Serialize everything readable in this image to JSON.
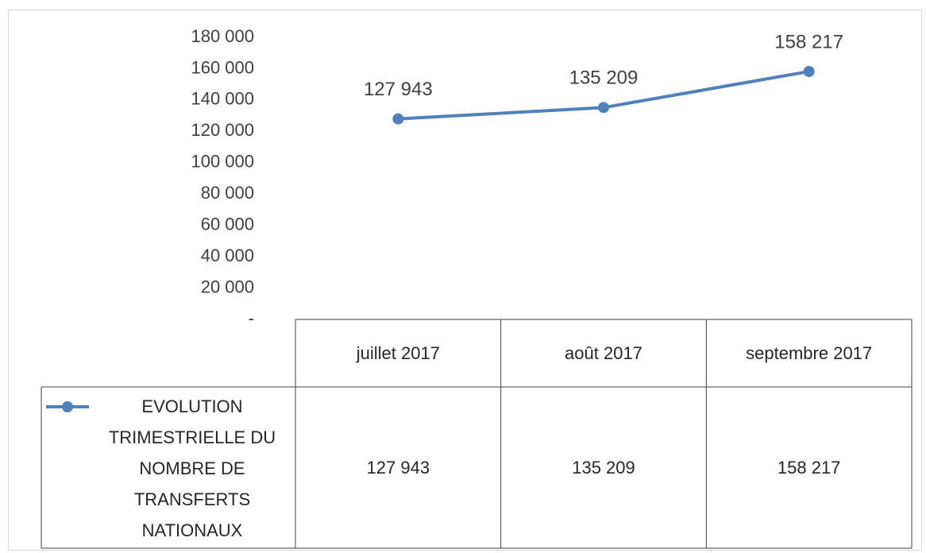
{
  "chart_data": {
    "type": "line",
    "categories": [
      "juillet 2017",
      "août 2017",
      "septembre 2017"
    ],
    "series": [
      {
        "name": "EVOLUTION TRIMESTRIELLE DU NOMBRE DE TRANSFERTS NATIONAUX",
        "color": "#4f81bd",
        "values": [
          127943,
          135209,
          158217
        ],
        "value_labels": [
          "127 943",
          "135 209",
          "158 217"
        ]
      }
    ],
    "ylim": [
      0,
      180000
    ],
    "yticks": [
      {
        "value": 0,
        "label": "-"
      },
      {
        "value": 20000,
        "label": "20 000"
      },
      {
        "value": 40000,
        "label": "40 000"
      },
      {
        "value": 60000,
        "label": "60 000"
      },
      {
        "value": 80000,
        "label": "80 000"
      },
      {
        "value": 100000,
        "label": "100 000"
      },
      {
        "value": 120000,
        "label": "120 000"
      },
      {
        "value": 140000,
        "label": "140 000"
      },
      {
        "value": 160000,
        "label": "160 000"
      },
      {
        "value": 180000,
        "label": "180 000"
      }
    ],
    "grid": false
  }
}
